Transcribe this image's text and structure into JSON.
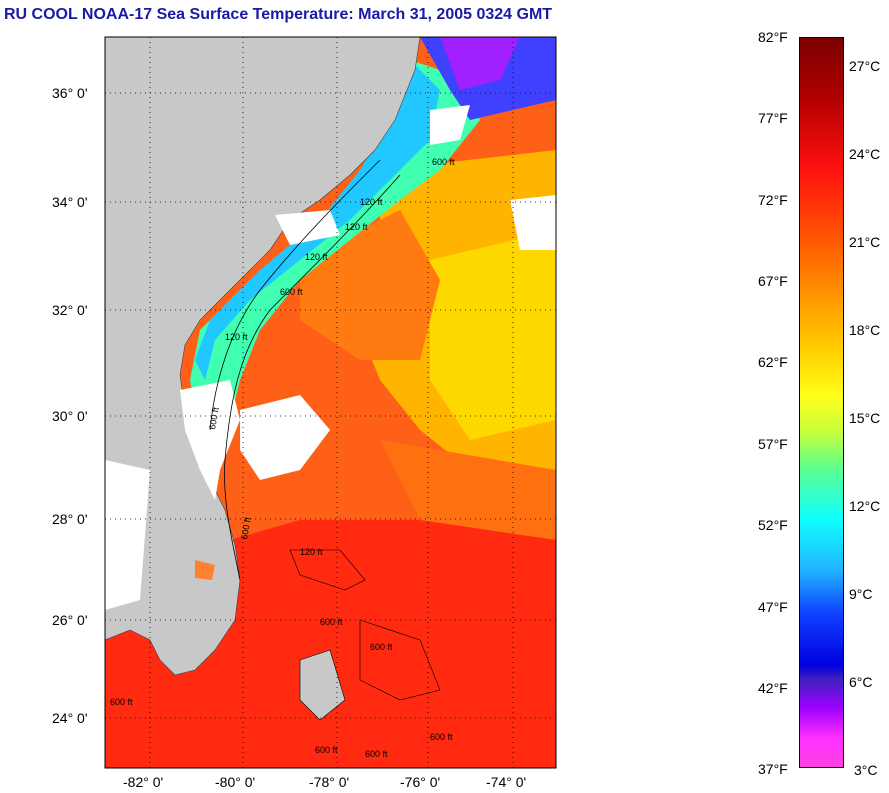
{
  "title": "RU COOL  NOAA-17  Sea Surface Temperature:  March 31, 2005 0324 GMT",
  "map": {
    "lat_labels": [
      "36° 0'",
      "34° 0'",
      "32° 0'",
      "30° 0'",
      "28° 0'",
      "26° 0'",
      "24° 0'"
    ],
    "lon_labels": [
      "-82° 0'",
      "-80° 0'",
      "-78° 0'",
      "-76° 0'",
      "-74° 0'"
    ],
    "contour_labels": [
      "600 ft",
      "120 ft",
      "600 ft",
      "120 ft",
      "600 ft",
      "120 ft",
      "120 ft",
      "600 ft",
      "120 ft",
      "600 ft",
      "600 ft",
      "600 ft",
      "600 ft",
      "600 ft",
      "600 ft"
    ],
    "colors": {
      "land": "#c8c8c8",
      "cloud": "#ffffff",
      "grid": "#000000",
      "depth_contour": "#000000"
    }
  },
  "colorbar": {
    "f_labels": [
      "82°F",
      "77°F",
      "72°F",
      "67°F",
      "62°F",
      "57°F",
      "52°F",
      "47°F",
      "42°F",
      "37°F"
    ],
    "c_labels": [
      "27°C",
      "24°C",
      "21°C",
      "18°C",
      "15°C",
      "12°C",
      "9°C",
      "6°C",
      "3°C"
    ]
  }
}
